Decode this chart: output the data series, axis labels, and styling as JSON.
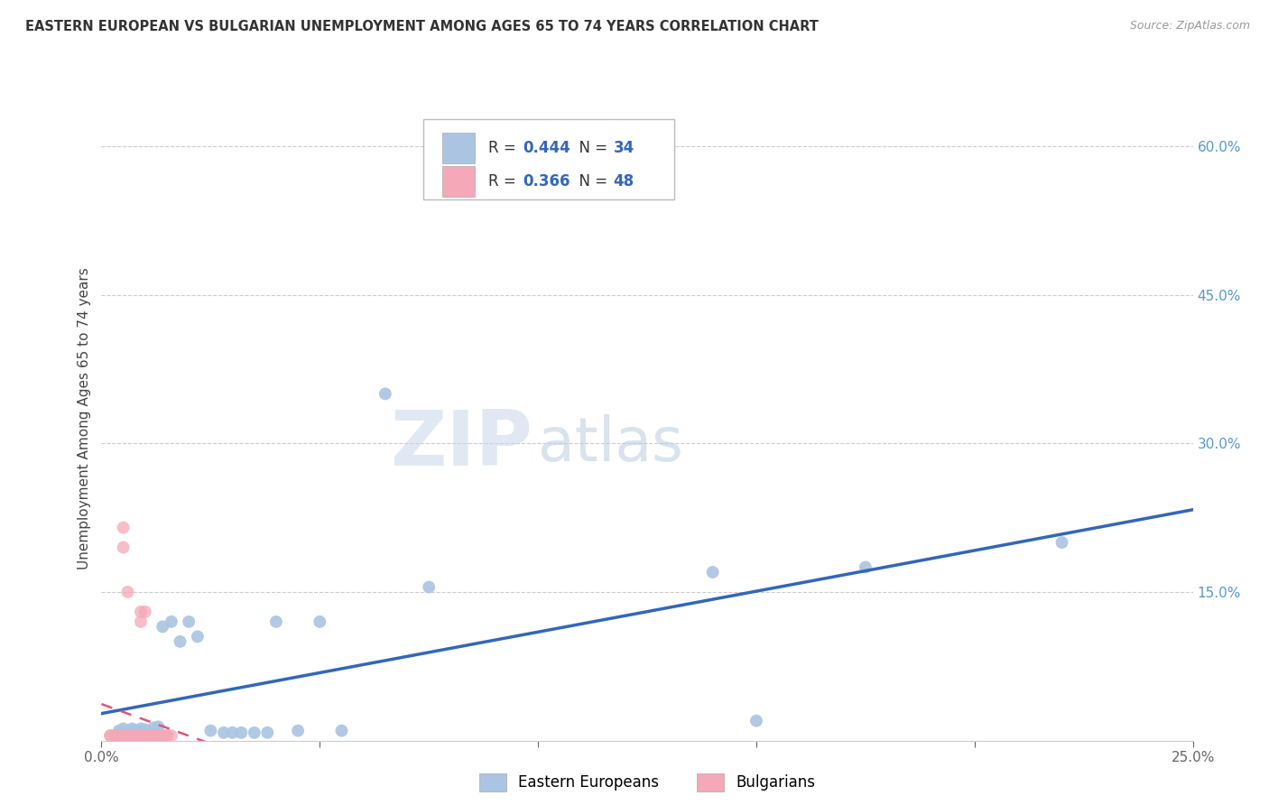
{
  "title": "EASTERN EUROPEAN VS BULGARIAN UNEMPLOYMENT AMONG AGES 65 TO 74 YEARS CORRELATION CHART",
  "source": "Source: ZipAtlas.com",
  "ylabel": "Unemployment Among Ages 65 to 74 years",
  "xmin": 0.0,
  "xmax": 0.25,
  "ymin": 0.0,
  "ymax": 0.65,
  "x_tick_positions": [
    0.0,
    0.05,
    0.1,
    0.15,
    0.2,
    0.25
  ],
  "x_tick_labels": [
    "0.0%",
    "",
    "",
    "",
    "",
    "25.0%"
  ],
  "y_ticks_right": [
    0.15,
    0.3,
    0.45,
    0.6
  ],
  "y_tick_labels_right": [
    "15.0%",
    "30.0%",
    "45.0%",
    "60.0%"
  ],
  "legend_r_eastern": "0.444",
  "legend_n_eastern": "34",
  "legend_r_bulgarian": "0.366",
  "legend_n_bulgarian": "48",
  "eastern_color": "#aac4e2",
  "bulgarian_color": "#f4a8b8",
  "trendline_eastern_color": "#3366bb",
  "trendline_bulgarian_color": "#dd5577",
  "watermark_zip": "ZIP",
  "watermark_atlas": "atlas",
  "eastern_dots": [
    [
      0.003,
      0.005
    ],
    [
      0.004,
      0.01
    ],
    [
      0.005,
      0.008
    ],
    [
      0.005,
      0.012
    ],
    [
      0.006,
      0.007
    ],
    [
      0.006,
      0.008
    ],
    [
      0.007,
      0.01
    ],
    [
      0.007,
      0.012
    ],
    [
      0.008,
      0.01
    ],
    [
      0.009,
      0.012
    ],
    [
      0.01,
      0.011
    ],
    [
      0.012,
      0.013
    ],
    [
      0.013,
      0.014
    ],
    [
      0.014,
      0.115
    ],
    [
      0.016,
      0.12
    ],
    [
      0.018,
      0.1
    ],
    [
      0.02,
      0.12
    ],
    [
      0.022,
      0.105
    ],
    [
      0.025,
      0.01
    ],
    [
      0.028,
      0.008
    ],
    [
      0.03,
      0.008
    ],
    [
      0.032,
      0.008
    ],
    [
      0.035,
      0.008
    ],
    [
      0.038,
      0.008
    ],
    [
      0.04,
      0.12
    ],
    [
      0.045,
      0.01
    ],
    [
      0.05,
      0.12
    ],
    [
      0.055,
      0.01
    ],
    [
      0.065,
      0.35
    ],
    [
      0.075,
      0.155
    ],
    [
      0.14,
      0.17
    ],
    [
      0.15,
      0.02
    ],
    [
      0.175,
      0.175
    ],
    [
      0.22,
      0.2
    ]
  ],
  "bulgarian_dots": [
    [
      0.002,
      0.005
    ],
    [
      0.002,
      0.005
    ],
    [
      0.003,
      0.005
    ],
    [
      0.003,
      0.005
    ],
    [
      0.003,
      0.005
    ],
    [
      0.004,
      0.005
    ],
    [
      0.004,
      0.005
    ],
    [
      0.004,
      0.005
    ],
    [
      0.004,
      0.005
    ],
    [
      0.005,
      0.005
    ],
    [
      0.005,
      0.195
    ],
    [
      0.005,
      0.215
    ],
    [
      0.005,
      0.005
    ],
    [
      0.005,
      0.005
    ],
    [
      0.006,
      0.005
    ],
    [
      0.006,
      0.005
    ],
    [
      0.006,
      0.15
    ],
    [
      0.006,
      0.005
    ],
    [
      0.006,
      0.005
    ],
    [
      0.007,
      0.005
    ],
    [
      0.007,
      0.005
    ],
    [
      0.007,
      0.005
    ],
    [
      0.007,
      0.005
    ],
    [
      0.007,
      0.005
    ],
    [
      0.008,
      0.005
    ],
    [
      0.008,
      0.005
    ],
    [
      0.008,
      0.005
    ],
    [
      0.008,
      0.005
    ],
    [
      0.009,
      0.13
    ],
    [
      0.009,
      0.12
    ],
    [
      0.009,
      0.005
    ],
    [
      0.01,
      0.005
    ],
    [
      0.01,
      0.005
    ],
    [
      0.01,
      0.005
    ],
    [
      0.01,
      0.13
    ],
    [
      0.011,
      0.005
    ],
    [
      0.011,
      0.005
    ],
    [
      0.011,
      0.005
    ],
    [
      0.012,
      0.005
    ],
    [
      0.012,
      0.005
    ],
    [
      0.012,
      0.005
    ],
    [
      0.013,
      0.005
    ],
    [
      0.013,
      0.005
    ],
    [
      0.014,
      0.005
    ],
    [
      0.014,
      0.005
    ],
    [
      0.015,
      0.005
    ],
    [
      0.015,
      0.005
    ],
    [
      0.016,
      0.005
    ]
  ]
}
